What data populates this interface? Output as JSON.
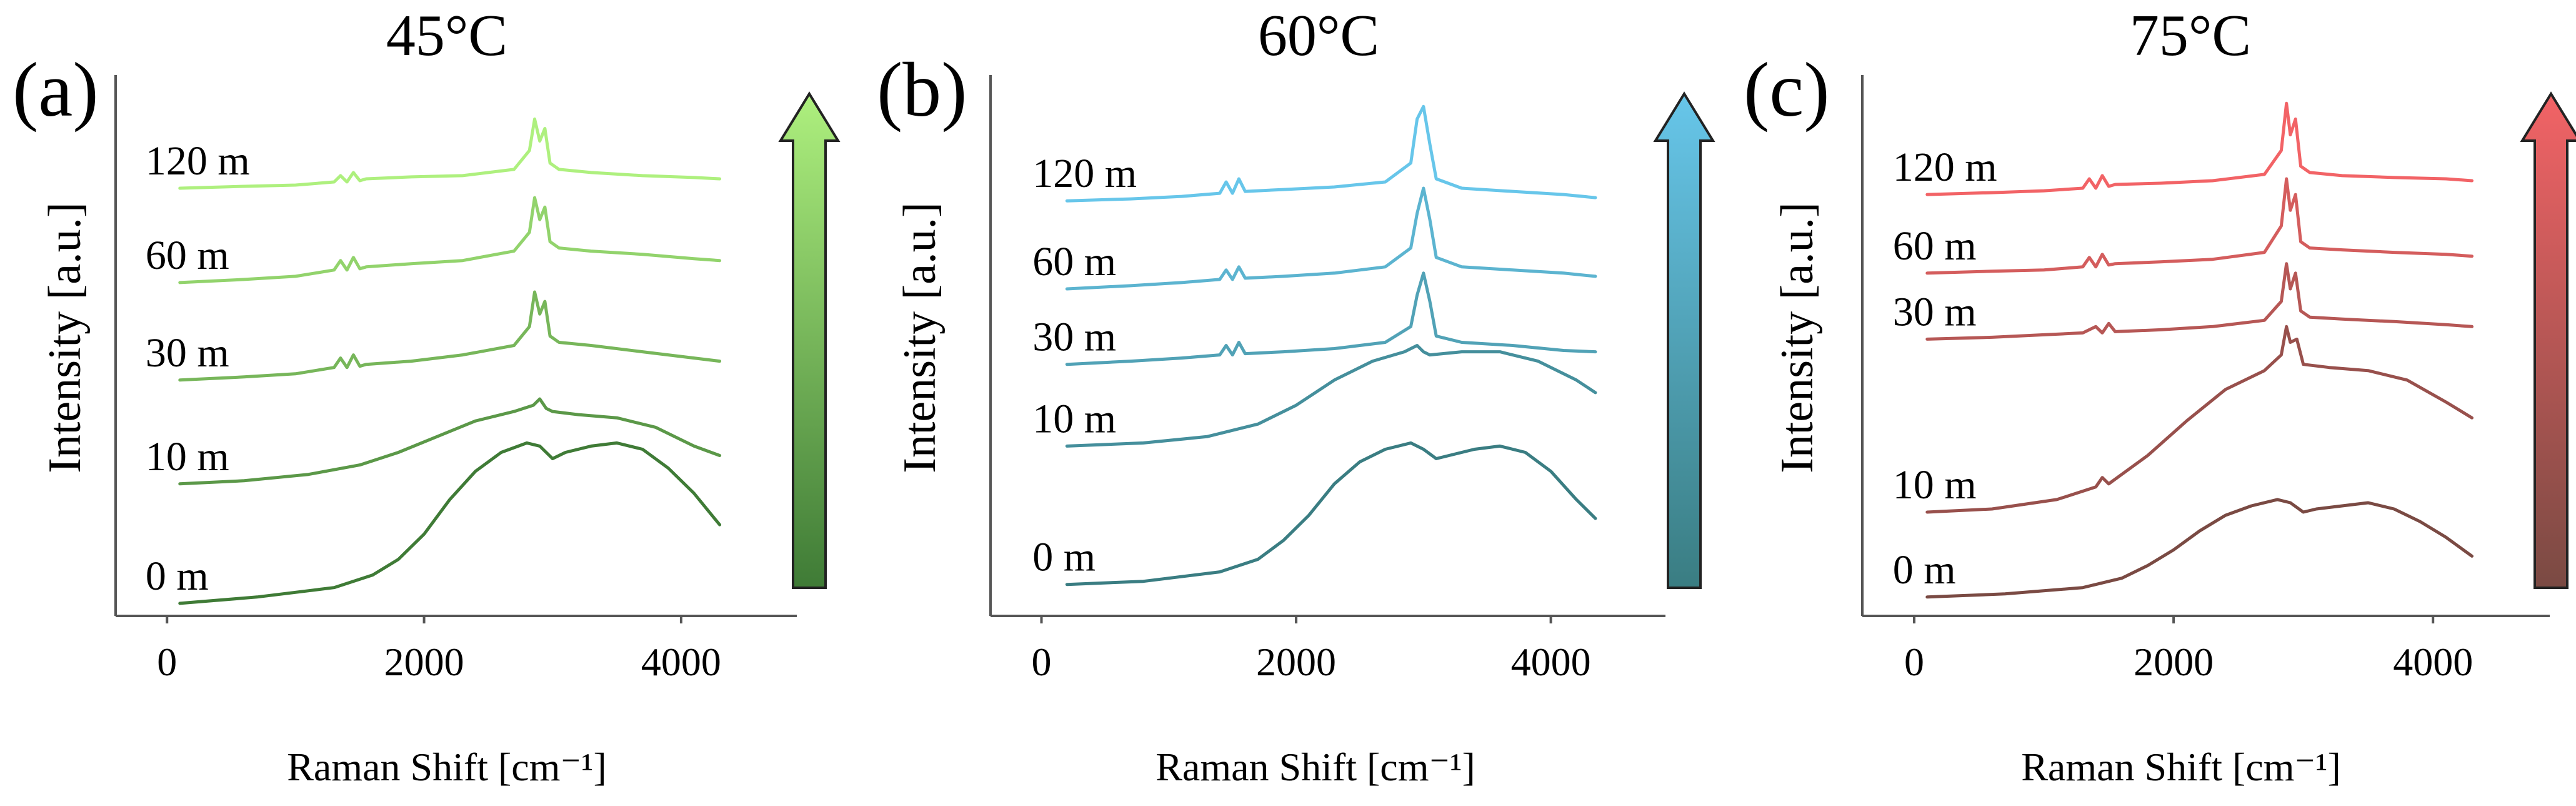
{
  "chart_data": [
    {
      "type": "line",
      "panel_label": "(a)",
      "title": "45°C",
      "xlabel": "Raman Shift [cm⁻¹]",
      "ylabel": "Intensity [a.u.]",
      "xticks": [
        0,
        2000,
        4000
      ],
      "xlim": [
        -400,
        4900
      ],
      "ylim": [
        0,
        8.6
      ],
      "grid": false,
      "colors": {
        "dark": "#3f7b36",
        "light": "#aef07e"
      },
      "series": [
        {
          "name": "0 m",
          "x": [
            100,
            700,
            1300,
            1600,
            1800,
            2000,
            2200,
            2400,
            2600,
            2800,
            2900,
            3000,
            3100,
            3300,
            3500,
            3700,
            3900,
            4100,
            4300
          ],
          "y": [
            0.2,
            0.3,
            0.45,
            0.65,
            0.9,
            1.3,
            1.85,
            2.3,
            2.6,
            2.75,
            2.7,
            2.5,
            2.6,
            2.7,
            2.75,
            2.65,
            2.35,
            1.95,
            1.45
          ]
        },
        {
          "name": "10 m",
          "x": [
            100,
            600,
            1100,
            1500,
            1800,
            2100,
            2400,
            2700,
            2850,
            2900,
            2950,
            3000,
            3200,
            3500,
            3800,
            4100,
            4300
          ],
          "y": [
            2.1,
            2.15,
            2.25,
            2.4,
            2.6,
            2.85,
            3.1,
            3.25,
            3.35,
            3.45,
            3.3,
            3.25,
            3.2,
            3.15,
            3.0,
            2.7,
            2.55
          ]
        },
        {
          "name": "30 m",
          "x": [
            100,
            600,
            1000,
            1300,
            1350,
            1400,
            1450,
            1500,
            1550,
            1900,
            2300,
            2700,
            2820,
            2860,
            2900,
            2940,
            2980,
            3050,
            3300,
            3700,
            4100,
            4300
          ],
          "y": [
            3.75,
            3.8,
            3.85,
            3.95,
            4.1,
            3.95,
            4.15,
            3.97,
            4.0,
            4.05,
            4.15,
            4.3,
            4.6,
            5.15,
            4.8,
            5.0,
            4.45,
            4.35,
            4.3,
            4.2,
            4.1,
            4.05
          ]
        },
        {
          "name": "60 m",
          "x": [
            100,
            600,
            1000,
            1300,
            1350,
            1400,
            1450,
            1500,
            1550,
            1900,
            2300,
            2700,
            2820,
            2860,
            2900,
            2940,
            2980,
            3050,
            3300,
            3700,
            4100,
            4300
          ],
          "y": [
            5.3,
            5.35,
            5.4,
            5.5,
            5.65,
            5.5,
            5.7,
            5.52,
            5.55,
            5.6,
            5.65,
            5.8,
            6.1,
            6.65,
            6.3,
            6.5,
            5.95,
            5.85,
            5.8,
            5.75,
            5.68,
            5.65
          ]
        },
        {
          "name": "120 m",
          "x": [
            100,
            600,
            1000,
            1300,
            1350,
            1400,
            1450,
            1500,
            1550,
            1900,
            2300,
            2700,
            2820,
            2860,
            2900,
            2940,
            2980,
            3050,
            3300,
            3700,
            4100,
            4300
          ],
          "y": [
            6.8,
            6.83,
            6.85,
            6.9,
            7.0,
            6.9,
            7.05,
            6.92,
            6.95,
            6.98,
            7.0,
            7.1,
            7.4,
            7.9,
            7.55,
            7.75,
            7.2,
            7.1,
            7.05,
            7.0,
            6.97,
            6.95
          ]
        }
      ]
    },
    {
      "type": "line",
      "panel_label": "(b)",
      "title": "60°C",
      "xlabel": "Raman Shift [cm⁻¹]",
      "ylabel": "Intensity [a.u.]",
      "xticks": [
        0,
        2000,
        4000
      ],
      "xlim": [
        -400,
        4900
      ],
      "ylim": [
        0,
        8.6
      ],
      "grid": false,
      "colors": {
        "dark": "#3a7d82",
        "light": "#67c6ea"
      },
      "series": [
        {
          "name": "0 m",
          "x": [
            200,
            800,
            1400,
            1700,
            1900,
            2100,
            2300,
            2500,
            2700,
            2900,
            3000,
            3100,
            3200,
            3400,
            3600,
            3800,
            4000,
            4200,
            4350
          ],
          "y": [
            0.5,
            0.55,
            0.7,
            0.9,
            1.2,
            1.6,
            2.1,
            2.45,
            2.65,
            2.75,
            2.65,
            2.5,
            2.55,
            2.65,
            2.7,
            2.6,
            2.3,
            1.85,
            1.55
          ]
        },
        {
          "name": "10 m",
          "x": [
            200,
            800,
            1300,
            1700,
            2000,
            2300,
            2600,
            2850,
            2950,
            3000,
            3050,
            3300,
            3600,
            3900,
            4200,
            4350
          ],
          "y": [
            2.7,
            2.75,
            2.85,
            3.05,
            3.35,
            3.75,
            4.05,
            4.2,
            4.3,
            4.2,
            4.15,
            4.2,
            4.2,
            4.05,
            3.75,
            3.55
          ]
        },
        {
          "name": "30 m",
          "x": [
            200,
            700,
            1100,
            1400,
            1450,
            1500,
            1550,
            1600,
            1900,
            2300,
            2700,
            2900,
            2950,
            3000,
            3050,
            3100,
            3300,
            3700,
            4100,
            4350
          ],
          "y": [
            4.0,
            4.05,
            4.1,
            4.15,
            4.3,
            4.15,
            4.35,
            4.17,
            4.2,
            4.25,
            4.35,
            4.6,
            5.1,
            5.45,
            5.0,
            4.45,
            4.35,
            4.3,
            4.22,
            4.2
          ]
        },
        {
          "name": "60 m",
          "x": [
            200,
            700,
            1100,
            1400,
            1450,
            1500,
            1550,
            1600,
            1900,
            2300,
            2700,
            2900,
            2950,
            3000,
            3050,
            3100,
            3300,
            3700,
            4100,
            4350
          ],
          "y": [
            5.2,
            5.25,
            5.3,
            5.35,
            5.5,
            5.35,
            5.55,
            5.37,
            5.4,
            5.45,
            5.55,
            5.85,
            6.4,
            6.8,
            6.3,
            5.7,
            5.55,
            5.5,
            5.45,
            5.4
          ]
        },
        {
          "name": "120 m",
          "x": [
            200,
            700,
            1100,
            1400,
            1450,
            1500,
            1550,
            1600,
            1900,
            2300,
            2700,
            2900,
            2950,
            3000,
            3050,
            3100,
            3300,
            3700,
            4100,
            4350
          ],
          "y": [
            6.6,
            6.63,
            6.67,
            6.72,
            6.9,
            6.72,
            6.95,
            6.75,
            6.78,
            6.82,
            6.9,
            7.2,
            7.9,
            8.1,
            7.5,
            6.95,
            6.8,
            6.75,
            6.7,
            6.65
          ]
        }
      ]
    },
    {
      "type": "line",
      "panel_label": "(c)",
      "title": "75°C",
      "xlabel": "Raman Shift [cm⁻¹]",
      "ylabel": "Intensity [a.u.]",
      "xticks": [
        0,
        2000,
        4000
      ],
      "xlim": [
        -400,
        4900
      ],
      "ylim": [
        0,
        8.6
      ],
      "grid": false,
      "colors": {
        "dark": "#7a4a43",
        "light": "#f26366"
      },
      "series": [
        {
          "name": "0 m",
          "x": [
            100,
            700,
            1300,
            1600,
            1800,
            2000,
            2200,
            2400,
            2600,
            2800,
            2900,
            3000,
            3100,
            3300,
            3500,
            3700,
            3900,
            4100,
            4300
          ],
          "y": [
            0.3,
            0.35,
            0.45,
            0.6,
            0.8,
            1.05,
            1.35,
            1.6,
            1.75,
            1.85,
            1.8,
            1.65,
            1.7,
            1.75,
            1.8,
            1.7,
            1.5,
            1.25,
            0.95
          ]
        },
        {
          "name": "10 m",
          "x": [
            100,
            600,
            1100,
            1400,
            1450,
            1500,
            1800,
            2100,
            2400,
            2700,
            2830,
            2870,
            2900,
            2950,
            3000,
            3200,
            3500,
            3800,
            4100,
            4300
          ],
          "y": [
            1.65,
            1.7,
            1.85,
            2.05,
            2.2,
            2.1,
            2.55,
            3.1,
            3.6,
            3.9,
            4.15,
            4.6,
            4.35,
            4.4,
            4.0,
            3.95,
            3.9,
            3.75,
            3.4,
            3.15
          ]
        },
        {
          "name": "30 m",
          "x": [
            100,
            600,
            1000,
            1300,
            1400,
            1450,
            1500,
            1550,
            1900,
            2300,
            2700,
            2830,
            2870,
            2900,
            2940,
            2980,
            3050,
            3300,
            3700,
            4100,
            4300
          ],
          "y": [
            4.4,
            4.43,
            4.47,
            4.5,
            4.6,
            4.5,
            4.65,
            4.52,
            4.55,
            4.6,
            4.7,
            5.0,
            5.6,
            5.2,
            5.45,
            4.85,
            4.75,
            4.72,
            4.68,
            4.63,
            4.6
          ]
        },
        {
          "name": "60 m",
          "x": [
            100,
            600,
            1000,
            1300,
            1350,
            1400,
            1450,
            1500,
            1550,
            1900,
            2300,
            2700,
            2830,
            2870,
            2900,
            2940,
            2980,
            3050,
            3300,
            3700,
            4100,
            4300
          ],
          "y": [
            5.45,
            5.48,
            5.5,
            5.55,
            5.7,
            5.55,
            5.75,
            5.58,
            5.6,
            5.63,
            5.67,
            5.78,
            6.2,
            6.95,
            6.45,
            6.7,
            5.95,
            5.85,
            5.82,
            5.78,
            5.75,
            5.72
          ]
        },
        {
          "name": "120 m",
          "x": [
            100,
            600,
            1000,
            1300,
            1350,
            1400,
            1450,
            1500,
            1550,
            1900,
            2300,
            2700,
            2830,
            2870,
            2900,
            2940,
            2980,
            3050,
            3300,
            3700,
            4100,
            4300
          ],
          "y": [
            6.7,
            6.73,
            6.76,
            6.8,
            6.95,
            6.8,
            7.0,
            6.83,
            6.86,
            6.88,
            6.92,
            7.02,
            7.4,
            8.15,
            7.65,
            7.9,
            7.15,
            7.05,
            7.0,
            6.97,
            6.95,
            6.92
          ]
        }
      ]
    }
  ]
}
